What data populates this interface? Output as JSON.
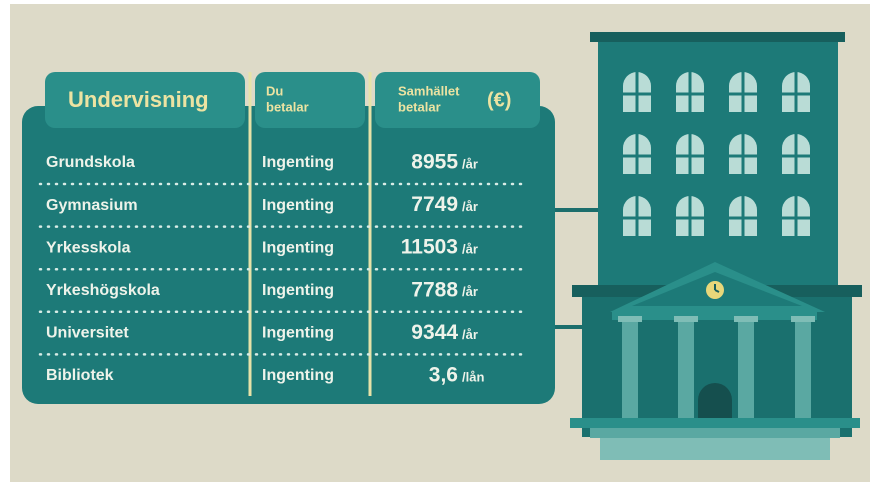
{
  "header": {
    "subject": "Undervisning",
    "you_pay": [
      "Du",
      "betalar"
    ],
    "society_pay": [
      "Samhället",
      "betalar"
    ],
    "currency": "(€)"
  },
  "rows": [
    {
      "name": "Grundskola",
      "you_pay": "Ingenting",
      "amount": "8955",
      "unit": "/år"
    },
    {
      "name": "Gymnasium",
      "you_pay": "Ingenting",
      "amount": "7749",
      "unit": "/år"
    },
    {
      "name": "Yrkesskola",
      "you_pay": "Ingenting",
      "amount": "11503",
      "unit": "/år"
    },
    {
      "name": "Yrkeshögskola",
      "you_pay": "Ingenting",
      "amount": "7788",
      "unit": "/år"
    },
    {
      "name": "Universitet",
      "you_pay": "Ingenting",
      "amount": "9344",
      "unit": "/år"
    },
    {
      "name": "Bibliotek",
      "you_pay": "Ingenting",
      "amount": "3,6",
      "unit": "/lån"
    }
  ]
}
